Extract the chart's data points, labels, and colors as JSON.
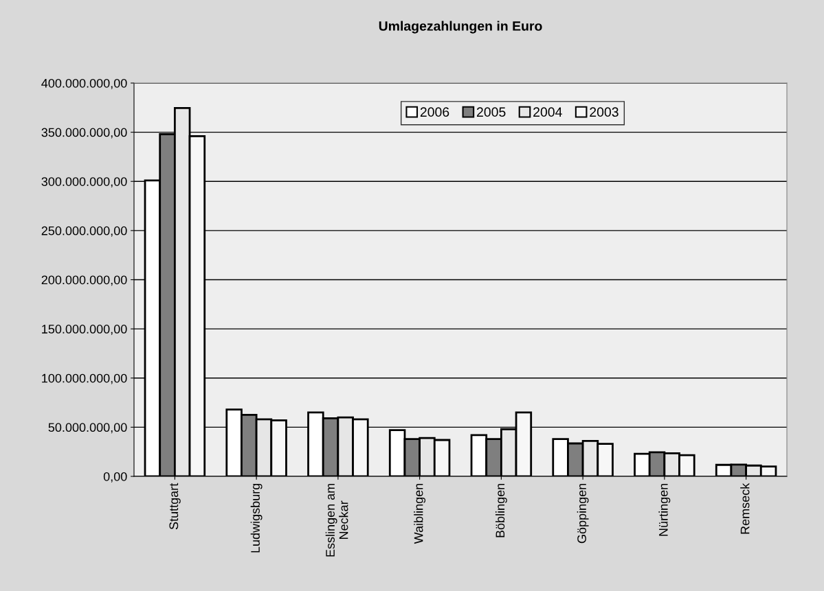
{
  "chart_data": {
    "type": "bar",
    "title": "Umlagezahlungen in Euro",
    "categories": [
      "Stuttgart",
      "Ludwigsburg",
      "Esslingen am\nNeckar",
      "Waiblingen",
      "Böblingen",
      "Göppingen",
      "Nürtingen",
      "Remseck"
    ],
    "series": [
      {
        "name": "2006",
        "color": "#ffffff",
        "values": [
          301000000,
          68000000,
          65000000,
          47000000,
          42000000,
          38000000,
          23000000,
          11700000
        ]
      },
      {
        "name": "2005",
        "color": "#7f7f7f",
        "values": [
          348000000,
          62500000,
          59000000,
          38000000,
          38000000,
          33500000,
          24500000,
          11900000
        ]
      },
      {
        "name": "2004",
        "color": "#e6e6e6",
        "values": [
          374600000,
          58000000,
          60000000,
          39000000,
          48000000,
          36000000,
          23500000,
          11000000
        ]
      },
      {
        "name": "2003",
        "color": "#f7f7f7",
        "values": [
          346000000,
          57000000,
          58000000,
          37000000,
          65000000,
          33000000,
          21500000,
          10000000
        ]
      }
    ],
    "ylim": [
      0,
      400000000
    ],
    "yticks": [
      {
        "value": 0,
        "label": "0,00"
      },
      {
        "value": 50000000,
        "label": "50.000.000,00"
      },
      {
        "value": 100000000,
        "label": "100.000.000,00"
      },
      {
        "value": 150000000,
        "label": "150.000.000,00"
      },
      {
        "value": 200000000,
        "label": "200.000.000,00"
      },
      {
        "value": 250000000,
        "label": "250.000.000,00"
      },
      {
        "value": 300000000,
        "label": "300.000.000,00"
      },
      {
        "value": 350000000,
        "label": "350.000.000,00"
      },
      {
        "value": 400000000,
        "label": "400.000.000,00"
      }
    ],
    "grid": "y",
    "legend": "top"
  }
}
